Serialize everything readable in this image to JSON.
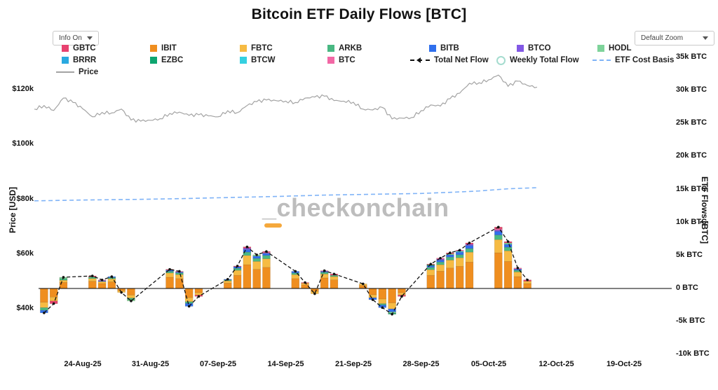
{
  "header": {
    "title": "Bitcoin ETF Daily Flows [BTC]"
  },
  "controls": {
    "info_label": "Info On",
    "zoom_label": "Default Zoom"
  },
  "watermark": {
    "text": "_checkonchain",
    "accent_color": "#f5a83c"
  },
  "legend": {
    "rows": [
      [
        {
          "label": "GBTC",
          "type": "square"
        },
        {
          "label": "IBIT",
          "type": "square"
        },
        {
          "label": "FBTC",
          "type": "square"
        },
        {
          "label": "ARKB",
          "type": "square"
        },
        {
          "label": "BITB",
          "type": "square"
        },
        {
          "label": "BTCO",
          "type": "square"
        },
        {
          "label": "HODL",
          "type": "square"
        }
      ],
      [
        {
          "label": "BRRR",
          "type": "square"
        },
        {
          "label": "EZBC",
          "type": "square"
        },
        {
          "label": "BTCW",
          "type": "square"
        },
        {
          "label": "BTC",
          "type": "square"
        },
        {
          "label": "Total Net Flow",
          "type": "dash-arrow",
          "color": "#111111"
        },
        {
          "label": "Weekly Total Flow",
          "type": "circle",
          "color": "#a5dccf"
        },
        {
          "label": "ETF Cost Basis",
          "type": "dash",
          "color": "#7fb3f7"
        }
      ],
      [
        {
          "label": "Price",
          "type": "line",
          "color": "#a3a3a3"
        }
      ]
    ]
  },
  "chart_data": {
    "type": "combo",
    "title": "Bitcoin ETF Daily Flows [BTC]",
    "x_axis": {
      "ticks": [
        "24-Aug-25",
        "31-Aug-25",
        "07-Sep-25",
        "14-Sep-25",
        "21-Sep-25",
        "28-Sep-25",
        "05-Oct-25",
        "12-Oct-25",
        "19-Oct-25"
      ],
      "tick_dates": [
        "2025-08-24",
        "2025-08-31",
        "2025-09-07",
        "2025-09-14",
        "2025-09-21",
        "2025-09-28",
        "2025-10-05",
        "2025-10-12",
        "2025-10-19"
      ]
    },
    "price_axis": {
      "label": "Price [USD]",
      "ticks": [
        [
          "$120k",
          120
        ],
        [
          "$100k",
          100
        ],
        [
          "$80k",
          80
        ],
        [
          "$60k",
          60
        ],
        [
          "$40k",
          40
        ]
      ]
    },
    "flow_axis": {
      "label": "ETF Flows [BTC]",
      "ticks": [
        [
          "35k BTC",
          35000
        ],
        [
          "30k BTC",
          30000
        ],
        [
          "25k BTC",
          25000
        ],
        [
          "20k BTC",
          20000
        ],
        [
          "15k BTC",
          15000
        ],
        [
          "10k BTC",
          10000
        ],
        [
          "5k BTC",
          5000
        ],
        [
          "0 BTC",
          0
        ],
        [
          "-5k BTC",
          -5000
        ],
        [
          "-10k BTC",
          -10000
        ]
      ]
    },
    "etf_colors": {
      "GBTC": "#e8426f",
      "IBIT": "#ef8e1f",
      "FBTC": "#f6bb43",
      "ARKB": "#49b882",
      "BITB": "#2f6fed",
      "BTCO": "#8258e5",
      "HODL": "#7ed39a",
      "BRRR": "#2aa9e0",
      "EZBC": "#0da56f",
      "BTCW": "#35d0e0",
      "BTC": "#f268a5"
    },
    "stack_order": [
      "IBIT",
      "FBTC",
      "ARKB",
      "BITB",
      "BTCO",
      "HODL",
      "BRRR",
      "EZBC",
      "BTCW",
      "BTC",
      "GBTC"
    ],
    "daily_flows": [
      {
        "date": "2025-08-20",
        "segments": {
          "IBIT": -2100,
          "FBTC": -800,
          "ARKB": -400,
          "BITB": -400
        }
      },
      {
        "date": "2025-08-21",
        "segments": {
          "IBIT": -1300,
          "FBTC": -600,
          "GBTC": -400
        }
      },
      {
        "date": "2025-08-22",
        "segments": {
          "IBIT": 900,
          "FBTC": 350,
          "ARKB": 250,
          "HODL": 200
        }
      },
      {
        "date": "2025-08-25",
        "segments": {
          "IBIT": 1100,
          "FBTC": 400,
          "ARKB": 250,
          "GBTC": 150
        }
      },
      {
        "date": "2025-08-26",
        "segments": {
          "IBIT": 750,
          "FBTC": 300,
          "BITB": 150,
          "BTC": 100
        }
      },
      {
        "date": "2025-08-27",
        "segments": {
          "IBIT": 1000,
          "FBTC": 450,
          "ARKB": 200,
          "BITB": 150
        }
      },
      {
        "date": "2025-08-28",
        "segments": {
          "IBIT": -350,
          "FBTC": -250
        }
      },
      {
        "date": "2025-08-29",
        "segments": {
          "IBIT": -1000,
          "FBTC": -450,
          "ARKB": -250,
          "HODL": -200
        }
      },
      {
        "date": "2025-09-02",
        "segments": {
          "IBIT": 1700,
          "FBTC": 650,
          "ARKB": 250,
          "BITB": 200,
          "GBTC": 100
        }
      },
      {
        "date": "2025-09-03",
        "segments": {
          "IBIT": 1500,
          "FBTC": 600,
          "ARKB": 250,
          "BITB": 150,
          "BTC": 100
        }
      },
      {
        "date": "2025-09-04",
        "segments": {
          "IBIT": -1400,
          "FBTC": -600,
          "BITB": -450,
          "ARKB": -250
        }
      },
      {
        "date": "2025-09-05",
        "segments": {
          "IBIT": -650,
          "FBTC": -350,
          "GBTC": -200
        }
      },
      {
        "date": "2025-09-08",
        "segments": {
          "IBIT": 800,
          "FBTC": 350,
          "ARKB": 150,
          "BITB": 100
        }
      },
      {
        "date": "2025-09-09",
        "segments": {
          "IBIT": 2000,
          "FBTC": 750,
          "ARKB": 300,
          "BITB": 250,
          "GBTC": 100
        }
      },
      {
        "date": "2025-09-10",
        "segments": {
          "IBIT": 3600,
          "FBTC": 1400,
          "ARKB": 500,
          "BITB": 400,
          "BTCO": 200,
          "GBTC": 200
        }
      },
      {
        "date": "2025-09-11",
        "segments": {
          "IBIT": 2900,
          "FBTC": 1200,
          "ARKB": 450,
          "BITB": 350,
          "HODL": 200
        }
      },
      {
        "date": "2025-09-12",
        "segments": {
          "IBIT": 3200,
          "FBTC": 1300,
          "ARKB": 500,
          "BITB": 350,
          "BTC": 150,
          "GBTC": 100
        }
      },
      {
        "date": "2025-09-15",
        "segments": {
          "IBIT": 1500,
          "FBTC": 600,
          "ARKB": 250,
          "BITB": 250
        }
      },
      {
        "date": "2025-09-16",
        "segments": {
          "IBIT": 550,
          "FBTC": 250,
          "GBTC": 100
        }
      },
      {
        "date": "2025-09-17",
        "segments": {
          "IBIT": -450,
          "FBTC": -350
        }
      },
      {
        "date": "2025-09-18",
        "segments": {
          "IBIT": 1600,
          "FBTC": 600,
          "ARKB": 250,
          "BITB": 150,
          "BTC": 100
        }
      },
      {
        "date": "2025-09-19",
        "segments": {
          "IBIT": 1300,
          "FBTC": 500,
          "ARKB": 200,
          "GBTC": 200
        }
      },
      {
        "date": "2025-09-22",
        "segments": {
          "IBIT": 450,
          "FBTC": 250
        }
      },
      {
        "date": "2025-09-23",
        "segments": {
          "IBIT": -950,
          "FBTC": -450,
          "BITB": -300
        }
      },
      {
        "date": "2025-09-24",
        "segments": {
          "IBIT": -1600,
          "FBTC": -700,
          "BITB": -400,
          "ARKB": -200
        }
      },
      {
        "date": "2025-09-25",
        "segments": {
          "IBIT": -2200,
          "FBTC": -900,
          "BITB": -450,
          "HODL": -200,
          "EZBC": -150
        }
      },
      {
        "date": "2025-09-26",
        "segments": {
          "IBIT": -650,
          "FBTC": -350,
          "GBTC": -200
        }
      },
      {
        "date": "2025-09-29",
        "segments": {
          "IBIT": 2000,
          "FBTC": 850,
          "ARKB": 350,
          "BITB": 250,
          "EZBC": 150,
          "GBTC": 100
        }
      },
      {
        "date": "2025-09-30",
        "segments": {
          "IBIT": 2600,
          "FBTC": 1000,
          "ARKB": 400,
          "BITB": 300,
          "BTCO": 150,
          "BTC": 150
        }
      },
      {
        "date": "2025-10-01",
        "segments": {
          "IBIT": 3100,
          "FBTC": 1200,
          "ARKB": 450,
          "BITB": 350,
          "HODL": 150,
          "GBTC": 150
        }
      },
      {
        "date": "2025-10-02",
        "segments": {
          "IBIT": 3350,
          "FBTC": 1300,
          "ARKB": 450,
          "BITB": 400,
          "BTCW": 150,
          "BTC": 150
        }
      },
      {
        "date": "2025-10-03",
        "segments": {
          "IBIT": 4000,
          "FBTC": 1500,
          "ARKB": 550,
          "BITB": 450,
          "GBTC": 200,
          "BTCO": 200
        }
      },
      {
        "date": "2025-10-06",
        "segments": {
          "IBIT": 5400,
          "FBTC": 2000,
          "ARKB": 700,
          "BITB": 550,
          "GBTC": 250,
          "BTCO": 200,
          "BTC": 200
        }
      },
      {
        "date": "2025-10-07",
        "segments": {
          "IBIT": 4100,
          "FBTC": 1600,
          "ARKB": 550,
          "BITB": 450,
          "HODL": 200,
          "GBTC": 200
        }
      },
      {
        "date": "2025-10-08",
        "segments": {
          "IBIT": 1800,
          "FBTC": 700,
          "ARKB": 250,
          "BITB": 200,
          "BTC": 150
        }
      },
      {
        "date": "2025-10-09",
        "segments": {
          "IBIT": 750,
          "FBTC": 350,
          "GBTC": 200
        }
      }
    ],
    "net_flow_series": {
      "name": "Total Net Flow",
      "color": "#111111",
      "style": "dashed"
    },
    "weekly_flow_series": {
      "name": "Weekly Total Flow",
      "color": "#a5dccf"
    },
    "cost_basis_series": {
      "name": "ETF Cost Basis",
      "color": "#7fb3f7",
      "style": "dashed",
      "unit": "USD_k",
      "points": [
        [
          "2025-08-19",
          79.4
        ],
        [
          "2025-08-24",
          79.7
        ],
        [
          "2025-08-29",
          79.9
        ],
        [
          "2025-09-03",
          80.2
        ],
        [
          "2025-09-08",
          80.6
        ],
        [
          "2025-09-13",
          81.0
        ],
        [
          "2025-09-18",
          81.5
        ],
        [
          "2025-09-23",
          81.8
        ],
        [
          "2025-09-28",
          82.1
        ],
        [
          "2025-10-01",
          82.5
        ],
        [
          "2025-10-04",
          83.0
        ],
        [
          "2025-10-07",
          83.8
        ],
        [
          "2025-10-10",
          84.2
        ]
      ]
    },
    "price_series": {
      "name": "Price",
      "color": "#a3a3a3",
      "unit": "USD_k",
      "points": [
        [
          "2025-08-19",
          112.9
        ],
        [
          "2025-08-20",
          114.2
        ],
        [
          "2025-08-21",
          112.4
        ],
        [
          "2025-08-22",
          116.9
        ],
        [
          "2025-08-23",
          115.3
        ],
        [
          "2025-08-24",
          113.0
        ],
        [
          "2025-08-25",
          110.1
        ],
        [
          "2025-08-26",
          111.7
        ],
        [
          "2025-08-27",
          111.5
        ],
        [
          "2025-08-28",
          112.9
        ],
        [
          "2025-08-29",
          108.9
        ],
        [
          "2025-08-30",
          108.5
        ],
        [
          "2025-08-31",
          108.8
        ],
        [
          "2025-09-01",
          109.4
        ],
        [
          "2025-09-02",
          111.3
        ],
        [
          "2025-09-03",
          111.8
        ],
        [
          "2025-09-04",
          110.6
        ],
        [
          "2025-09-05",
          110.8
        ],
        [
          "2025-09-06",
          110.4
        ],
        [
          "2025-09-07",
          110.1
        ],
        [
          "2025-09-08",
          112.3
        ],
        [
          "2025-09-09",
          111.6
        ],
        [
          "2025-09-10",
          114.2
        ],
        [
          "2025-09-11",
          115.6
        ],
        [
          "2025-09-12",
          116.2
        ],
        [
          "2025-09-13",
          116.0
        ],
        [
          "2025-09-14",
          115.8
        ],
        [
          "2025-09-15",
          115.3
        ],
        [
          "2025-09-16",
          116.9
        ],
        [
          "2025-09-17",
          117.3
        ],
        [
          "2025-09-18",
          117.6
        ],
        [
          "2025-09-19",
          116.0
        ],
        [
          "2025-09-20",
          115.8
        ],
        [
          "2025-09-21",
          115.4
        ],
        [
          "2025-09-22",
          112.9
        ],
        [
          "2025-09-23",
          112.6
        ],
        [
          "2025-09-24",
          113.5
        ],
        [
          "2025-09-25",
          109.3
        ],
        [
          "2025-09-26",
          109.6
        ],
        [
          "2025-09-27",
          109.8
        ],
        [
          "2025-09-28",
          112.3
        ],
        [
          "2025-09-29",
          114.4
        ],
        [
          "2025-09-30",
          114.0
        ],
        [
          "2025-10-01",
          116.7
        ],
        [
          "2025-10-02",
          118.7
        ],
        [
          "2025-10-03",
          122.3
        ],
        [
          "2025-10-04",
          122.5
        ],
        [
          "2025-10-05",
          123.6
        ],
        [
          "2025-10-06",
          125.3
        ],
        [
          "2025-10-07",
          121.2
        ],
        [
          "2025-10-08",
          123.1
        ],
        [
          "2025-10-09",
          121.5
        ],
        [
          "2025-10-10",
          120.9
        ]
      ]
    }
  }
}
